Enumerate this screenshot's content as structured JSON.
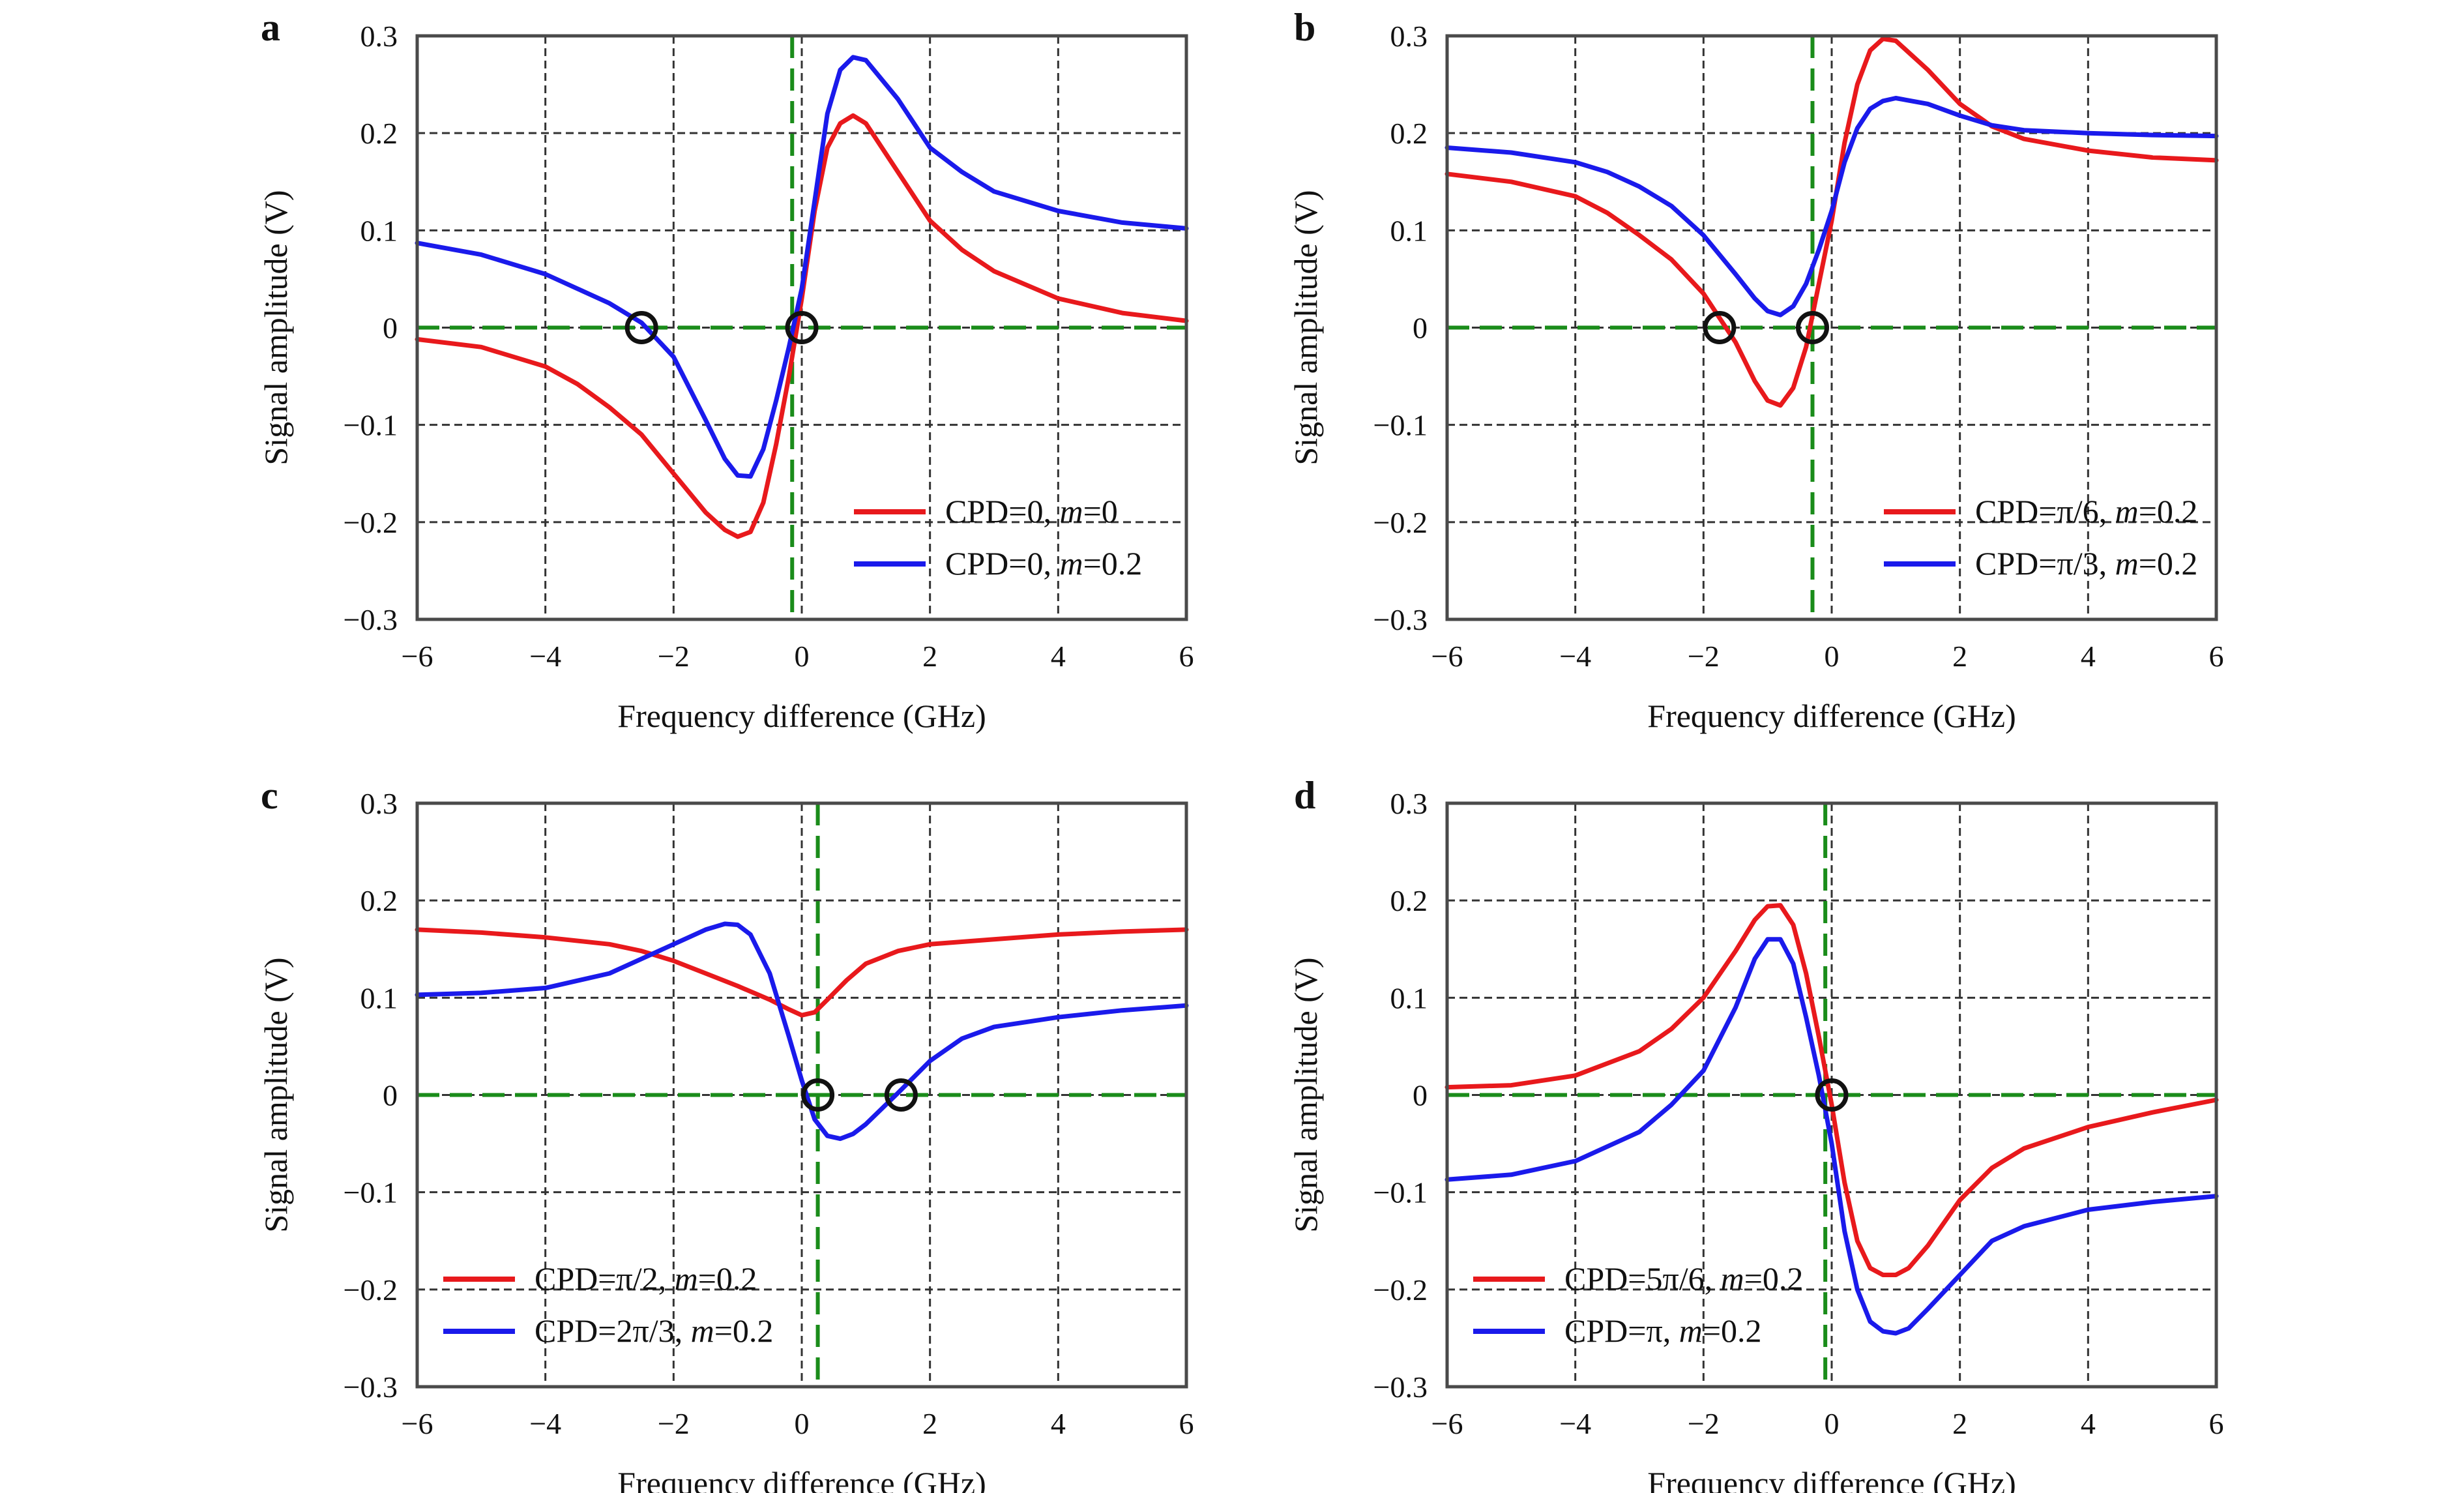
{
  "colors": {
    "red": "#e8191c",
    "blue": "#1a1aeb",
    "green": "#1a8c1a",
    "grid": "#333333",
    "frame": "#4a4a4a",
    "marker": "#111111"
  },
  "chart_data": [
    {
      "panel": "a",
      "type": "line",
      "xlabel": "Frequency difference (GHz)",
      "ylabel": "Signal amplitude (V)",
      "xlim": [
        -6,
        6
      ],
      "ylim": [
        -0.3,
        0.3
      ],
      "xticks": [
        "−6",
        "−4",
        "−2",
        "0",
        "2",
        "4",
        "6"
      ],
      "yticks": [
        "0.3",
        "0.2",
        "0.1",
        "0",
        "−0.1",
        "−0.2",
        "−0.3"
      ],
      "grid": true,
      "legend_position": "bottom-right",
      "ref_x": -0.15,
      "ref_y": 0,
      "zero_markers": [
        [
          -2.5,
          0
        ],
        [
          0,
          0
        ]
      ],
      "series": [
        {
          "name": "CPD=0, m=0",
          "label_main": "CPD=0, ",
          "label_m": "m",
          "label_tail": "=0",
          "color": "#e8191c",
          "x": [
            -6,
            -5,
            -4,
            -3.5,
            -3,
            -2.5,
            -2,
            -1.5,
            -1.2,
            -1,
            -0.8,
            -0.6,
            -0.4,
            -0.2,
            0,
            0.2,
            0.4,
            0.6,
            0.8,
            1,
            1.5,
            2,
            2.5,
            3,
            4,
            5,
            6
          ],
          "y": [
            -0.012,
            -0.02,
            -0.04,
            -0.058,
            -0.082,
            -0.11,
            -0.15,
            -0.19,
            -0.208,
            -0.215,
            -0.21,
            -0.18,
            -0.12,
            -0.05,
            0.03,
            0.12,
            0.185,
            0.21,
            0.218,
            0.21,
            0.16,
            0.11,
            0.08,
            0.058,
            0.03,
            0.015,
            0.007
          ]
        },
        {
          "name": "CPD=0, m=0.2",
          "label_main": "CPD=0, ",
          "label_m": "m",
          "label_tail": "=0.2",
          "color": "#1a1aeb",
          "x": [
            -6,
            -5,
            -4,
            -3.5,
            -3,
            -2.5,
            -2,
            -1.5,
            -1.2,
            -1,
            -0.8,
            -0.6,
            -0.4,
            -0.2,
            0,
            0.2,
            0.4,
            0.6,
            0.8,
            1,
            1.5,
            2,
            2.5,
            3,
            4,
            5,
            6
          ],
          "y": [
            0.087,
            0.075,
            0.055,
            0.04,
            0.025,
            0.005,
            -0.03,
            -0.095,
            -0.135,
            -0.152,
            -0.153,
            -0.125,
            -0.075,
            -0.02,
            0.04,
            0.13,
            0.22,
            0.265,
            0.278,
            0.275,
            0.235,
            0.185,
            0.16,
            0.14,
            0.12,
            0.108,
            0.102
          ]
        }
      ]
    },
    {
      "panel": "b",
      "type": "line",
      "xlabel": "Frequency difference (GHz)",
      "ylabel": "Signal amplitude (V)",
      "xlim": [
        -6,
        6
      ],
      "ylim": [
        -0.3,
        0.3
      ],
      "xticks": [
        "−6",
        "−4",
        "−2",
        "0",
        "2",
        "4",
        "6"
      ],
      "yticks": [
        "0.3",
        "0.2",
        "0.1",
        "0",
        "−0.1",
        "−0.2",
        "−0.3"
      ],
      "grid": true,
      "legend_position": "bottom-right",
      "ref_x": -0.3,
      "ref_y": 0,
      "zero_markers": [
        [
          -1.75,
          0
        ],
        [
          -0.3,
          0
        ]
      ],
      "series": [
        {
          "name": "CPD=π/6, m=0.2",
          "label_main": "CPD=π/6, ",
          "label_m": "m",
          "label_tail": "=0.2",
          "color": "#e8191c",
          "x": [
            -6,
            -5,
            -4,
            -3.5,
            -3,
            -2.5,
            -2,
            -1.5,
            -1.2,
            -1,
            -0.8,
            -0.6,
            -0.4,
            -0.2,
            0,
            0.2,
            0.4,
            0.6,
            0.8,
            1,
            1.5,
            2,
            2.5,
            3,
            4,
            5,
            6
          ],
          "y": [
            0.158,
            0.15,
            0.135,
            0.118,
            0.095,
            0.07,
            0.035,
            -0.015,
            -0.055,
            -0.075,
            -0.08,
            -0.062,
            -0.02,
            0.045,
            0.11,
            0.19,
            0.25,
            0.285,
            0.297,
            0.295,
            0.265,
            0.23,
            0.207,
            0.194,
            0.182,
            0.175,
            0.172
          ]
        },
        {
          "name": "CPD=π/3, m=0.2",
          "label_main": "CPD=π/3, ",
          "label_m": "m",
          "label_tail": "=0.2",
          "color": "#1a1aeb",
          "x": [
            -6,
            -5,
            -4,
            -3.5,
            -3,
            -2.5,
            -2,
            -1.5,
            -1.2,
            -1,
            -0.8,
            -0.6,
            -0.4,
            -0.2,
            0,
            0.2,
            0.4,
            0.6,
            0.8,
            1,
            1.5,
            2,
            2.5,
            3,
            4,
            5,
            6
          ],
          "y": [
            0.185,
            0.18,
            0.17,
            0.16,
            0.145,
            0.125,
            0.095,
            0.055,
            0.03,
            0.017,
            0.013,
            0.022,
            0.045,
            0.08,
            0.12,
            0.17,
            0.205,
            0.225,
            0.233,
            0.236,
            0.23,
            0.218,
            0.208,
            0.203,
            0.2,
            0.198,
            0.197
          ]
        }
      ]
    },
    {
      "panel": "c",
      "type": "line",
      "xlabel": "Frequency difference (GHz)",
      "ylabel": "Signal amplitude (V)",
      "xlim": [
        -6,
        6
      ],
      "ylim": [
        -0.3,
        0.3
      ],
      "xticks": [
        "−6",
        "−4",
        "−2",
        "0",
        "2",
        "4",
        "6"
      ],
      "yticks": [
        "0.3",
        "0.2",
        "0.1",
        "0",
        "−0.1",
        "−0.2",
        "−0.3"
      ],
      "grid": true,
      "legend_position": "bottom-left",
      "ref_x": 0.25,
      "ref_y": 0,
      "zero_markers": [
        [
          0.25,
          0
        ],
        [
          1.55,
          0
        ]
      ],
      "series": [
        {
          "name": "CPD=π/2, m=0.2",
          "label_main": "CPD=π/2, ",
          "label_m": "m",
          "label_tail": "=0.2",
          "color": "#e8191c",
          "x": [
            -6,
            -5,
            -4,
            -3,
            -2.5,
            -2,
            -1.5,
            -1,
            -0.5,
            -0.2,
            0,
            0.2,
            0.4,
            0.7,
            1,
            1.5,
            2,
            3,
            4,
            5,
            6
          ],
          "y": [
            0.17,
            0.167,
            0.162,
            0.155,
            0.148,
            0.138,
            0.125,
            0.112,
            0.098,
            0.088,
            0.082,
            0.085,
            0.098,
            0.118,
            0.135,
            0.148,
            0.155,
            0.16,
            0.165,
            0.168,
            0.17
          ]
        },
        {
          "name": "CPD=2π/3, m=0.2",
          "label_main": "CPD=2π/3, ",
          "label_m": "m",
          "label_tail": "=0.2",
          "color": "#1a1aeb",
          "x": [
            -6,
            -5,
            -4,
            -3,
            -2.5,
            -2,
            -1.5,
            -1.2,
            -1,
            -0.8,
            -0.5,
            -0.2,
            0,
            0.2,
            0.4,
            0.6,
            0.8,
            1,
            1.5,
            2,
            2.5,
            3,
            4,
            5,
            6
          ],
          "y": [
            0.103,
            0.105,
            0.11,
            0.125,
            0.14,
            0.155,
            0.17,
            0.176,
            0.175,
            0.165,
            0.125,
            0.06,
            0.015,
            -0.025,
            -0.042,
            -0.045,
            -0.04,
            -0.03,
            0.002,
            0.035,
            0.058,
            0.07,
            0.08,
            0.087,
            0.092
          ]
        }
      ]
    },
    {
      "panel": "d",
      "type": "line",
      "xlabel": "Frequency difference (GHz)",
      "ylabel": "Signal amplitude (V)",
      "xlim": [
        -6,
        6
      ],
      "ylim": [
        -0.3,
        0.3
      ],
      "xticks": [
        "−6",
        "−4",
        "−2",
        "0",
        "2",
        "4",
        "6"
      ],
      "yticks": [
        "0.3",
        "0.2",
        "0.1",
        "0",
        "−0.1",
        "−0.2",
        "−0.3"
      ],
      "grid": true,
      "legend_position": "bottom-left",
      "ref_x": -0.1,
      "ref_y": 0,
      "zero_markers": [
        [
          0,
          0
        ]
      ],
      "series": [
        {
          "name": "CPD=5π/6, m=0.2",
          "label_main": "CPD=5π/6, ",
          "label_m": "m",
          "label_tail": "=0.2",
          "color": "#e8191c",
          "x": [
            -6,
            -5,
            -4,
            -3,
            -2.5,
            -2,
            -1.5,
            -1.2,
            -1,
            -0.8,
            -0.6,
            -0.4,
            -0.2,
            0,
            0.2,
            0.4,
            0.6,
            0.8,
            1,
            1.2,
            1.5,
            2,
            2.5,
            3,
            4,
            5,
            6
          ],
          "y": [
            0.008,
            0.01,
            0.02,
            0.045,
            0.068,
            0.1,
            0.148,
            0.18,
            0.194,
            0.195,
            0.175,
            0.125,
            0.06,
            -0.01,
            -0.09,
            -0.15,
            -0.178,
            -0.185,
            -0.185,
            -0.178,
            -0.155,
            -0.108,
            -0.075,
            -0.055,
            -0.033,
            -0.018,
            -0.005
          ]
        },
        {
          "name": "CPD=π, m=0.2",
          "label_main": "CPD=π, ",
          "label_m": "m",
          "label_tail": "=0.2",
          "color": "#1a1aeb",
          "x": [
            -6,
            -5,
            -4,
            -3,
            -2.5,
            -2,
            -1.5,
            -1.2,
            -1,
            -0.8,
            -0.6,
            -0.4,
            -0.2,
            0,
            0.2,
            0.4,
            0.6,
            0.8,
            1,
            1.2,
            1.5,
            2,
            2.5,
            3,
            4,
            5,
            6
          ],
          "y": [
            -0.087,
            -0.082,
            -0.068,
            -0.038,
            -0.01,
            0.025,
            0.09,
            0.14,
            0.16,
            0.16,
            0.135,
            0.08,
            0.02,
            -0.05,
            -0.14,
            -0.2,
            -0.233,
            -0.243,
            -0.245,
            -0.24,
            -0.22,
            -0.185,
            -0.15,
            -0.135,
            -0.118,
            -0.11,
            -0.104
          ]
        }
      ]
    }
  ]
}
